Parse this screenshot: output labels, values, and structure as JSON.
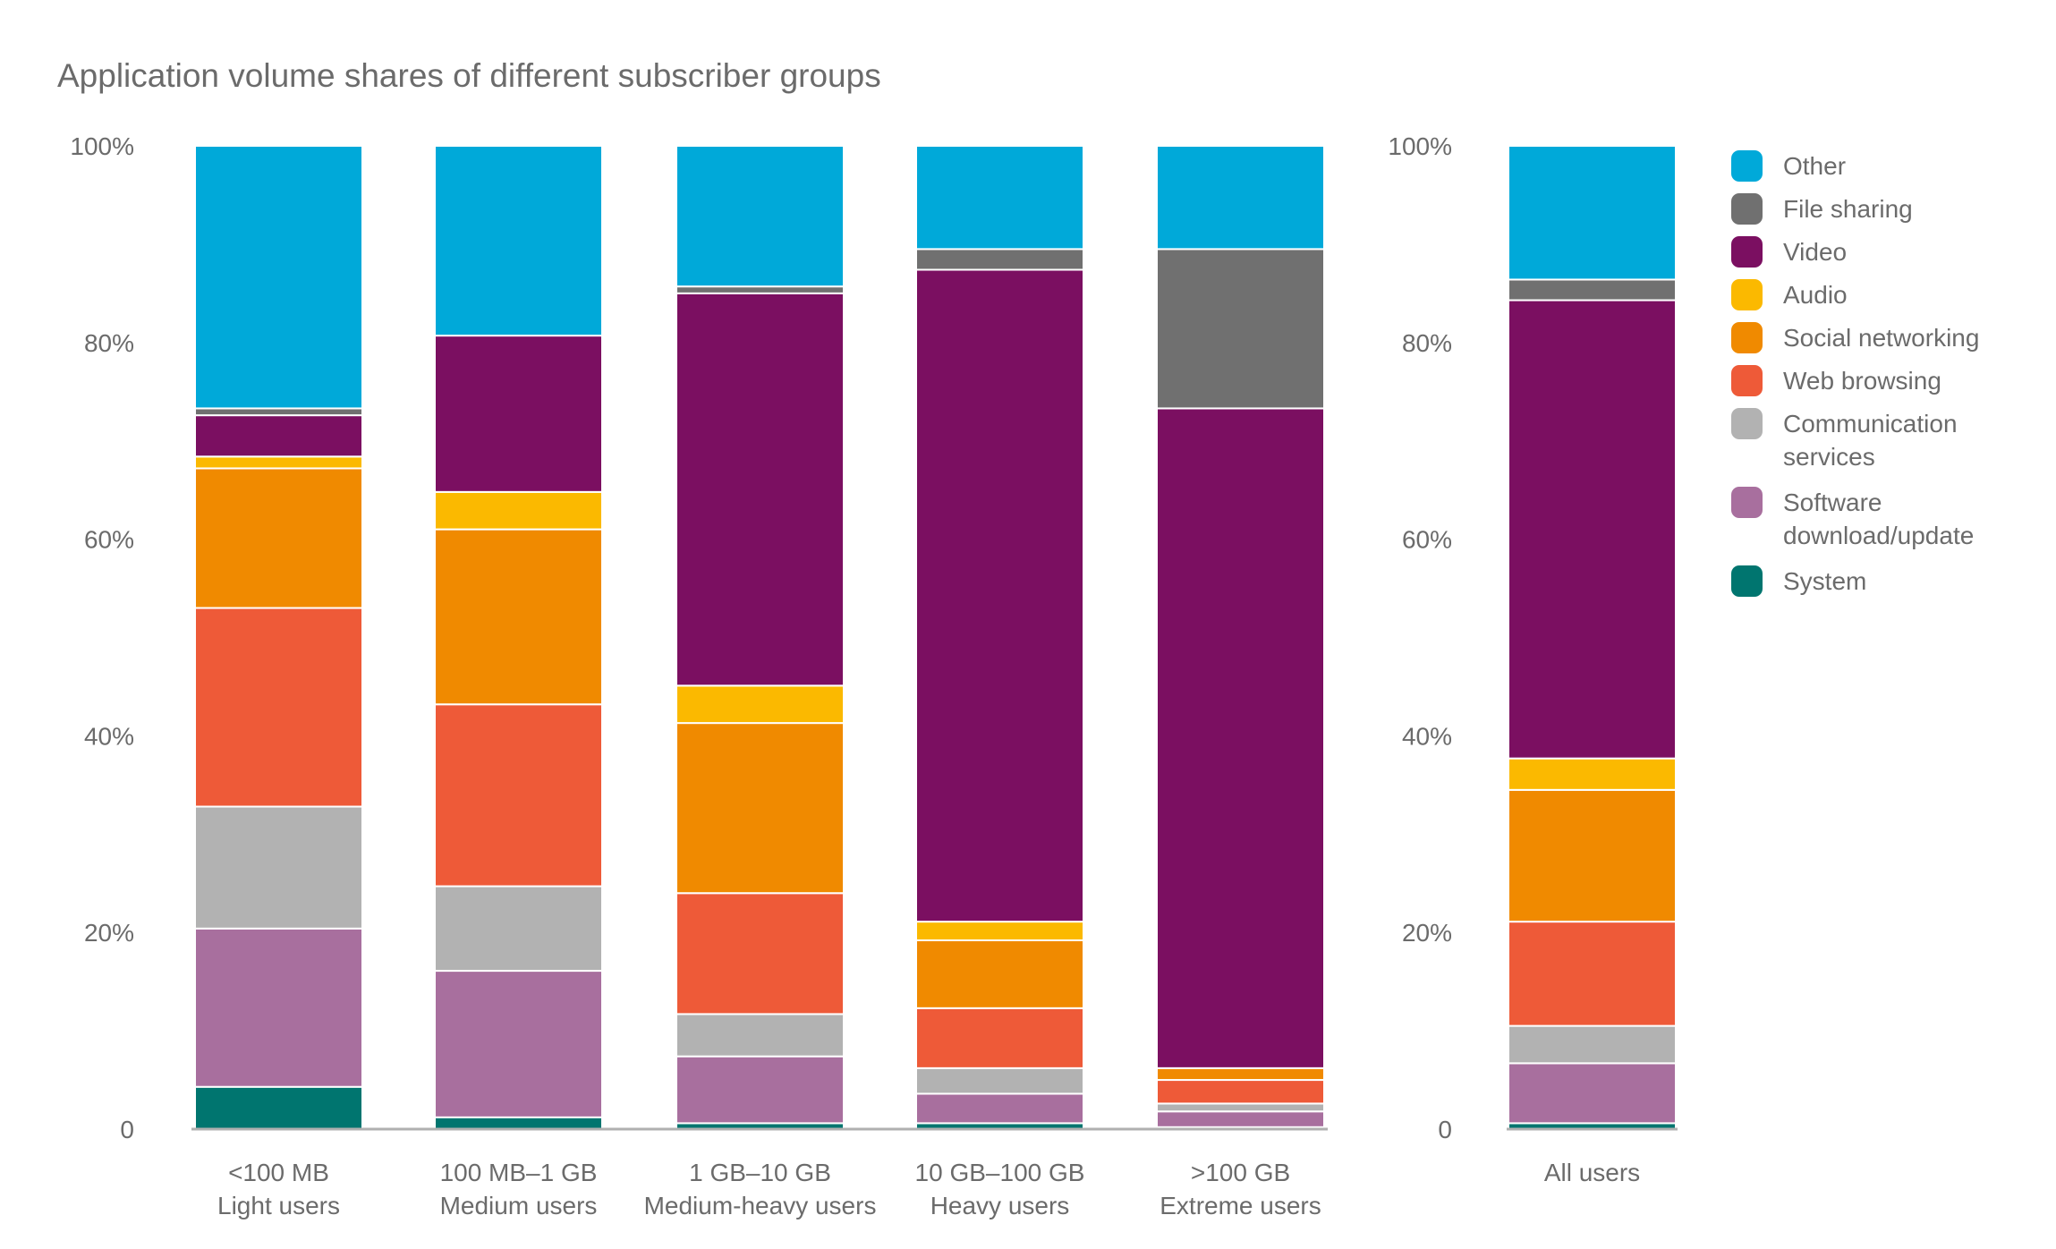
{
  "chart_data": {
    "type": "bar",
    "stacked": true,
    "title": "Application volume shares of different subscriber groups",
    "xlabel": "",
    "ylabel": "",
    "ylim": [
      0,
      100
    ],
    "yticks": [
      "0",
      "20%",
      "40%",
      "60%",
      "80%",
      "100%"
    ],
    "grid": false,
    "legend_position": "right",
    "categories": [
      [
        "<100 MB",
        "Light users"
      ],
      [
        "100 MB–1 GB",
        "Medium users"
      ],
      [
        "1 GB–10 GB",
        "Medium-heavy users"
      ],
      [
        "10 GB–100 GB",
        "Heavy users"
      ],
      [
        ">100 GB",
        "Extreme users"
      ],
      [
        "All users",
        ""
      ]
    ],
    "series": [
      {
        "name": "System",
        "legend_lines": [
          "System"
        ],
        "color": "#00756f",
        "values": [
          4.3,
          1.2,
          0.6,
          0.6,
          0.2,
          0.6
        ]
      },
      {
        "name": "Software download/update",
        "legend_lines": [
          "Software",
          "download/update"
        ],
        "color": "#a86f9e",
        "values": [
          16.1,
          14.9,
          6.8,
          3.0,
          1.6,
          6.1
        ]
      },
      {
        "name": "Communication services",
        "legend_lines": [
          "Communication",
          "services"
        ],
        "color": "#b2b2b2",
        "values": [
          12.4,
          8.6,
          4.3,
          2.6,
          0.8,
          3.8
        ]
      },
      {
        "name": "Web browsing",
        "legend_lines": [
          "Web browsing"
        ],
        "color": "#ee5a38",
        "values": [
          20.2,
          18.5,
          12.3,
          6.1,
          2.4,
          10.6
        ]
      },
      {
        "name": "Social networking",
        "legend_lines": [
          "Social networking"
        ],
        "color": "#f08a00",
        "values": [
          14.2,
          17.8,
          17.3,
          6.9,
          1.2,
          13.4
        ]
      },
      {
        "name": "Audio",
        "legend_lines": [
          "Audio"
        ],
        "color": "#fbb900",
        "values": [
          1.2,
          3.8,
          3.8,
          1.9,
          0.0,
          3.2
        ]
      },
      {
        "name": "Video",
        "legend_lines": [
          "Video"
        ],
        "color": "#7b0f61",
        "values": [
          4.2,
          15.9,
          39.9,
          66.3,
          67.1,
          46.6
        ]
      },
      {
        "name": "File sharing",
        "legend_lines": [
          "File sharing"
        ],
        "color": "#707070",
        "values": [
          0.7,
          0.0,
          0.7,
          2.1,
          16.2,
          2.1
        ]
      },
      {
        "name": "Other",
        "legend_lines": [
          "Other"
        ],
        "color": "#00a9d9",
        "values": [
          26.7,
          19.3,
          14.3,
          10.5,
          10.5,
          13.6
        ]
      }
    ]
  }
}
